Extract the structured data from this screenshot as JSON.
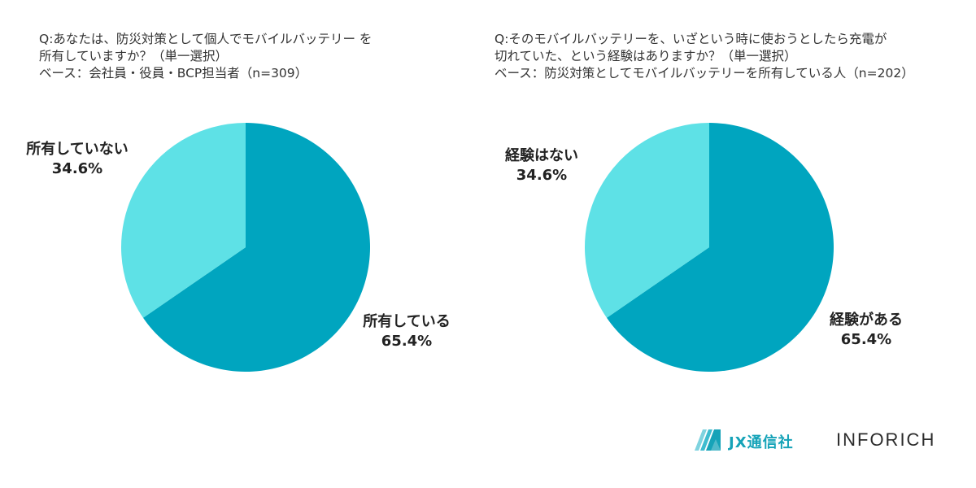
{
  "colors": {
    "major": "#00a5bf",
    "minor": "#5ee1e6",
    "brand": "#16a3b8"
  },
  "chart_data": [
    {
      "type": "pie",
      "title_lines": [
        "Q:あなたは、防災対策として個人でモバイルバッテリー を",
        "所有していますか？（単一選択）",
        "ベース：会社員・役員・BCP担当者（n=309）"
      ],
      "slices": [
        {
          "label": "所有している",
          "value": 65.4,
          "display": "65.4%",
          "color": "#00a5bf"
        },
        {
          "label": "所有していない",
          "value": 34.6,
          "display": "34.6%",
          "color": "#5ee1e6"
        }
      ]
    },
    {
      "type": "pie",
      "title_lines": [
        "Q:そのモバイルバッテリーを、いざという時に使おうとしたら充電が",
        "切れていた、という経験はありますか？（単一選択）",
        "ベース：防災対策としてモバイルバッテリーを所有している人（n=202）"
      ],
      "slices": [
        {
          "label": "経験がある",
          "value": 65.4,
          "display": "65.4%",
          "color": "#00a5bf"
        },
        {
          "label": "経験はない",
          "value": 34.6,
          "display": "34.6%",
          "color": "#5ee1e6"
        }
      ]
    }
  ],
  "logos": {
    "jx_name": "JX通信社",
    "inforich": "INFORICH",
    "jx_icon": "jx-logo-icon"
  }
}
